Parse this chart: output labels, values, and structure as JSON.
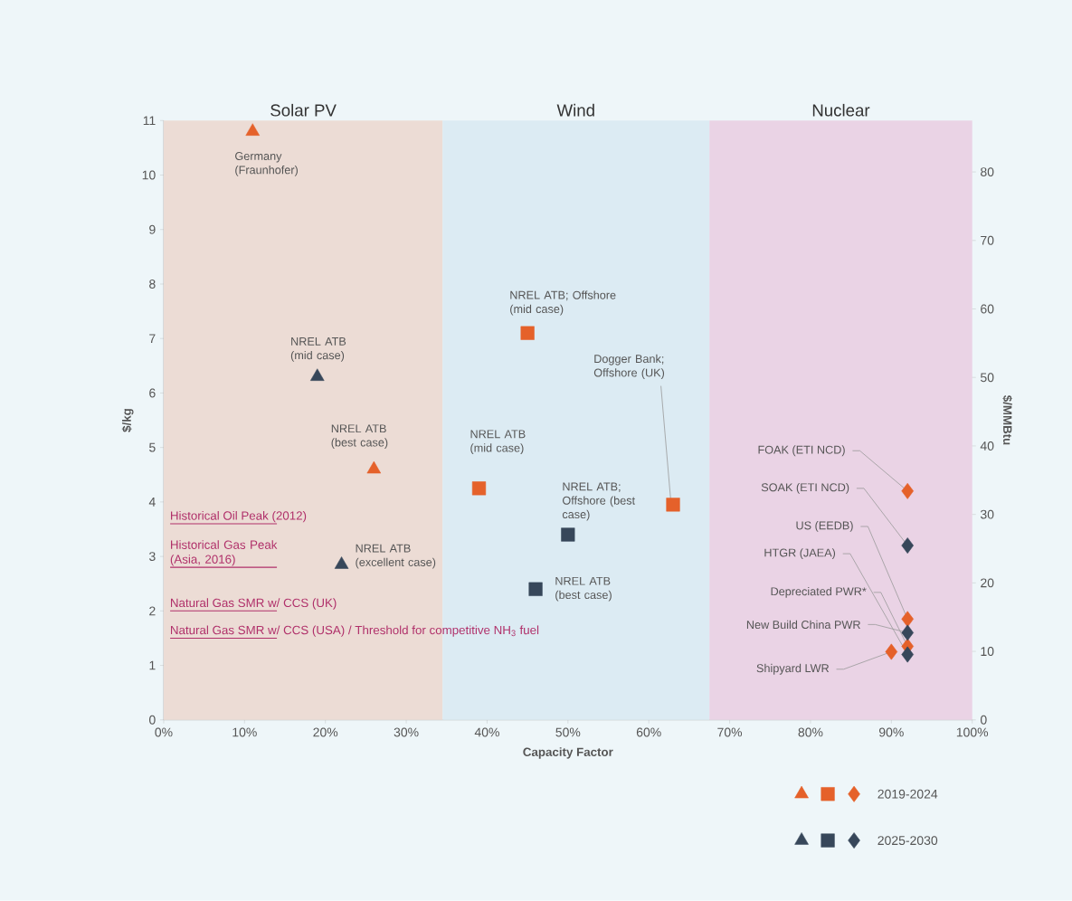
{
  "chart_data": {
    "type": "scatter",
    "xlabel": "Capacity Factor",
    "ylabel": "$/kg",
    "y2label": "$/MMBtu",
    "xlim": [
      0,
      100
    ],
    "ylim": [
      0,
      11
    ],
    "y2lim": [
      0,
      87.5
    ],
    "xticks": [
      {
        "value": 0,
        "label": "0%"
      },
      {
        "value": 10,
        "label": "10%"
      },
      {
        "value": 20,
        "label": "20%"
      },
      {
        "value": 30,
        "label": "30%"
      },
      {
        "value": 40,
        "label": "40%"
      },
      {
        "value": 50,
        "label": "50%"
      },
      {
        "value": 60,
        "label": "60%"
      },
      {
        "value": 70,
        "label": "70%"
      },
      {
        "value": 80,
        "label": "80%"
      },
      {
        "value": 90,
        "label": "90%"
      },
      {
        "value": 100,
        "label": "100%"
      }
    ],
    "yticks": [
      0,
      1,
      2,
      3,
      4,
      5,
      6,
      7,
      8,
      9,
      10,
      11
    ],
    "y2ticks": [
      0,
      10,
      20,
      30,
      40,
      50,
      60,
      70,
      80
    ],
    "legend": "bottom right",
    "series": [
      {
        "name": "2019-2024",
        "color": "#e5612a",
        "marker": [
          "triangle",
          "triangle",
          "square",
          "square",
          "square",
          "diamond",
          "diamond",
          "diamond",
          "diamond"
        ],
        "x": [
          11,
          26,
          39,
          45,
          63,
          92,
          92,
          92,
          90
        ],
        "values": [
          10.8,
          4.6,
          4.25,
          7.1,
          3.95,
          4.2,
          1.85,
          1.35,
          1.25
        ]
      },
      {
        "name": "2025-2030",
        "color": "#37475a",
        "marker": [
          "triangle",
          "triangle",
          "square",
          "square",
          "diamond",
          "diamond",
          "diamond"
        ],
        "x": [
          19,
          22,
          46,
          50,
          92,
          92,
          92
        ],
        "values": [
          6.3,
          2.85,
          2.4,
          3.4,
          3.2,
          1.6,
          1.2
        ]
      }
    ],
    "bands": [
      {
        "axis": "x",
        "from": 0,
        "to": 34.5,
        "label": "Solar PV",
        "color": "#ecdcd5"
      },
      {
        "axis": "x",
        "from": 34.5,
        "to": 67.5,
        "label": "Wind",
        "color": "#dcebf3"
      },
      {
        "axis": "x",
        "from": 67.5,
        "to": 100,
        "label": "Nuclear",
        "color": "#ead3e5"
      }
    ],
    "ref_lines": [
      {
        "axis": "y",
        "value": 3.6,
        "label": "Historical Oil Peak (2012)",
        "color": "#b0306a"
      },
      {
        "axis": "y",
        "value": 2.8,
        "label": "Historical Gas Peak (Asia, 2016)",
        "color": "#b0306a"
      },
      {
        "axis": "y",
        "value": 2.0,
        "label": "Natural Gas SMR w/ CCS (UK)",
        "color": "#b0306a"
      },
      {
        "axis": "y",
        "value": 1.5,
        "label": "Natural Gas SMR w/ CCS (USA) / Threshold for competitive NH$_{3}$ fuel",
        "color": "#b0306a"
      }
    ],
    "annotations": [
      {
        "text": "Germany (Fraunhofer)",
        "x": 11,
        "y": 10.8
      },
      {
        "text": "NREL ATB (mid case)",
        "x": 19,
        "y": 6.3
      },
      {
        "text": "NREL ATB (best case)",
        "x": 26,
        "y": 4.6
      },
      {
        "text": "NREL ATB (excellent case)",
        "x": 22,
        "y": 2.85
      },
      {
        "text": "NREL ATB; Offshore (mid case)",
        "x": 45,
        "y": 7.1
      },
      {
        "text": "NREL ATB (mid case)",
        "x": 39,
        "y": 4.25
      },
      {
        "text": "Dogger Bank; Offshore (UK)",
        "x": 63,
        "y": 3.95
      },
      {
        "text": "NREL ATB; Offshore (best case)",
        "x": 50,
        "y": 3.4
      },
      {
        "text": "NREL ATB (best case)",
        "x": 46,
        "y": 2.4
      },
      {
        "text": "FOAK (ETI NCD)",
        "x": 92,
        "y": 4.2
      },
      {
        "text": "SOAK (ETI NCD)",
        "x": 92,
        "y": 3.2
      },
      {
        "text": "US (EEDB)",
        "x": 92,
        "y": 1.85
      },
      {
        "text": "HTGR (JAEA)",
        "x": 92,
        "y": 1.2
      },
      {
        "text": "Depreciated PWR*",
        "x": 92,
        "y": 1.35
      },
      {
        "text": "New Build China PWR",
        "x": 92,
        "y": 1.6
      },
      {
        "text": "Shipyard LWR",
        "x": 90,
        "y": 1.25
      }
    ]
  }
}
